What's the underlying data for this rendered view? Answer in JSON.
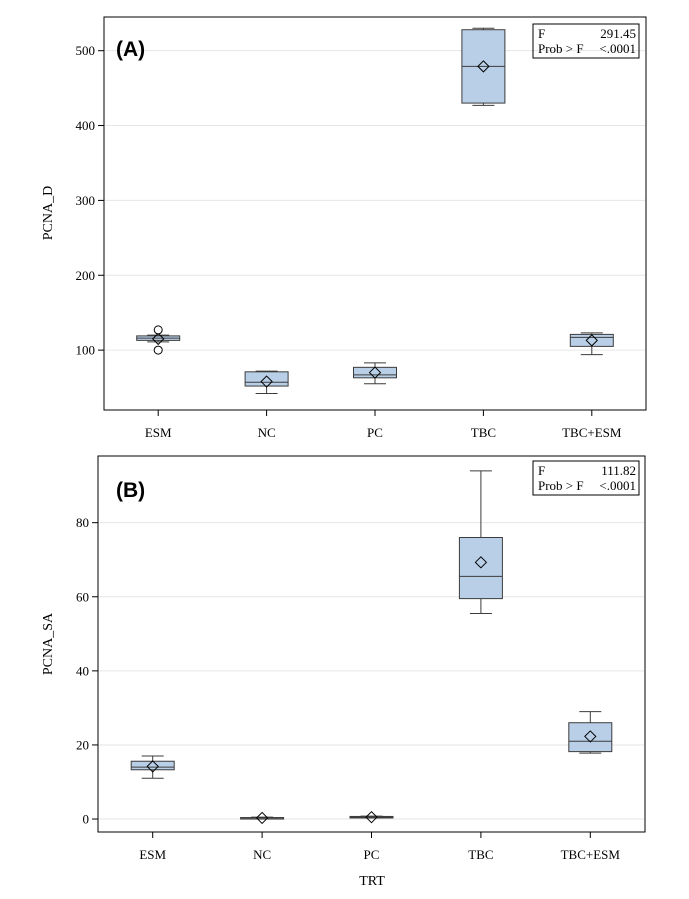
{
  "chart_data": [
    {
      "type": "box",
      "panel_label": "(A)",
      "xlabel": "",
      "ylabel": "PCNA_D",
      "categories": [
        "ESM",
        "NC",
        "PC",
        "TBC",
        "TBC+ESM"
      ],
      "ylim": [
        20,
        545
      ],
      "yticks": [
        100,
        200,
        300,
        400,
        500
      ],
      "grid": true,
      "stats_table": [
        {
          "label": "F",
          "value": "291.45"
        },
        {
          "label": "Prob > F",
          "value": "<.0001"
        }
      ],
      "boxes": [
        {
          "category": "ESM",
          "min": 111,
          "q1": 113,
          "median": 116,
          "q3": 119,
          "max": 120,
          "mean": 115,
          "outliers": [
            127,
            100
          ]
        },
        {
          "category": "NC",
          "min": 42,
          "q1": 52,
          "median": 57,
          "q3": 71,
          "max": 72,
          "mean": 58,
          "outliers": []
        },
        {
          "category": "PC",
          "min": 55,
          "q1": 63,
          "median": 67,
          "q3": 77,
          "max": 83,
          "mean": 70,
          "outliers": []
        },
        {
          "category": "TBC",
          "min": 427,
          "q1": 430,
          "median": 479,
          "q3": 528,
          "max": 530,
          "mean": 479,
          "outliers": []
        },
        {
          "category": "TBC+ESM",
          "min": 94,
          "q1": 105,
          "median": 117,
          "q3": 121,
          "max": 123,
          "mean": 113,
          "outliers": []
        }
      ]
    },
    {
      "type": "box",
      "panel_label": "(B)",
      "xlabel": "TRT",
      "ylabel": "PCNA_SA",
      "categories": [
        "ESM",
        "NC",
        "PC",
        "TBC",
        "TBC+ESM"
      ],
      "ylim": [
        -3.5,
        98
      ],
      "yticks": [
        0,
        20,
        40,
        60,
        80
      ],
      "grid": true,
      "stats_table": [
        {
          "label": "F",
          "value": "111.82"
        },
        {
          "label": "Prob > F",
          "value": "<.0001"
        }
      ],
      "boxes": [
        {
          "category": "ESM",
          "min": 11,
          "q1": 13.3,
          "median": 14,
          "q3": 15.6,
          "max": 17,
          "mean": 14.2,
          "outliers": []
        },
        {
          "category": "NC",
          "min": 0.1,
          "q1": 0.2,
          "median": 0.3,
          "q3": 0.4,
          "max": 0.5,
          "mean": 0.3,
          "outliers": []
        },
        {
          "category": "PC",
          "min": 0.3,
          "q1": 0.4,
          "median": 0.5,
          "q3": 0.7,
          "max": 0.8,
          "mean": 0.5,
          "outliers": []
        },
        {
          "category": "TBC",
          "min": 55.5,
          "q1": 59.5,
          "median": 65.5,
          "q3": 76,
          "max": 94,
          "mean": 69.3,
          "outliers": []
        },
        {
          "category": "TBC+ESM",
          "min": 17.8,
          "q1": 18.2,
          "median": 21,
          "q3": 26,
          "max": 29,
          "mean": 22.3,
          "outliers": []
        }
      ]
    }
  ]
}
